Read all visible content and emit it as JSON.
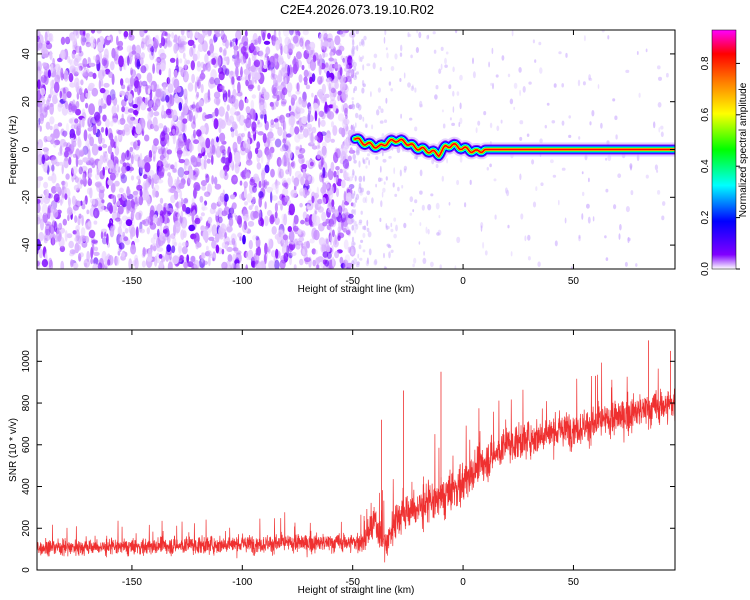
{
  "title": "C2E4.2026.073.19.10.R02",
  "chart_data": [
    {
      "type": "heatmap",
      "xlabel": "Height of straight line (km)",
      "ylabel": "Frequency (Hz)",
      "xlim": [
        -193,
        96
      ],
      "ylim": [
        -50,
        50
      ],
      "xticks": [
        -150,
        -100,
        -50,
        0,
        50
      ],
      "yticks": [
        -40,
        -20,
        0,
        20,
        40
      ],
      "colorbar": {
        "label": "Normalized spectral amplitude",
        "range": [
          0.0,
          0.93
        ],
        "ticks": [
          0.0,
          0.2,
          0.4,
          0.6,
          0.8
        ],
        "colormap": [
          "#ffffff",
          "#8000ff",
          "#0000ff",
          "#00ffff",
          "#00ff00",
          "#ffff00",
          "#ff8000",
          "#ff0000",
          "#ff00ff"
        ]
      },
      "features": {
        "noise_region_x": [
          -193,
          -50
        ],
        "noise_amplitude": [
          0.0,
          0.15
        ],
        "signal_track": [
          {
            "x": -49,
            "f": 5
          },
          {
            "x": -46,
            "f": 3
          },
          {
            "x": -42,
            "f": 2
          },
          {
            "x": -38,
            "f": 1
          },
          {
            "x": -34,
            "f": 3
          },
          {
            "x": -30,
            "f": 4
          },
          {
            "x": -26,
            "f": 3
          },
          {
            "x": -22,
            "f": 1
          },
          {
            "x": -18,
            "f": 0
          },
          {
            "x": -14,
            "f": -1
          },
          {
            "x": -11,
            "f": -2
          },
          {
            "x": -8,
            "f": 1
          },
          {
            "x": -5,
            "f": 2
          },
          {
            "x": -2,
            "f": 1
          },
          {
            "x": 2,
            "f": 0
          },
          {
            "x": 6,
            "f": -1
          },
          {
            "x": 10,
            "f": 0
          },
          {
            "x": 20,
            "f": 0
          },
          {
            "x": 50,
            "f": 0
          },
          {
            "x": 96,
            "f": 0
          }
        ],
        "signal_peak_amplitude": 0.85
      }
    },
    {
      "type": "line",
      "xlabel": "Height of straight line (km)",
      "ylabel": "SNR (10 * v/v)",
      "xlim": [
        -193,
        96
      ],
      "ylim": [
        0,
        1150
      ],
      "xticks": [
        -150,
        -100,
        -50,
        0,
        50
      ],
      "yticks": [
        0,
        200,
        400,
        600,
        800,
        1000
      ],
      "color": "#ef3030",
      "trend": [
        {
          "x": -193,
          "y": 110
        },
        {
          "x": -150,
          "y": 110
        },
        {
          "x": -100,
          "y": 125
        },
        {
          "x": -60,
          "y": 130
        },
        {
          "x": -45,
          "y": 135
        },
        {
          "x": -40,
          "y": 230
        },
        {
          "x": -35,
          "y": 120
        },
        {
          "x": -30,
          "y": 260
        },
        {
          "x": -20,
          "y": 300
        },
        {
          "x": -10,
          "y": 340
        },
        {
          "x": 0,
          "y": 420
        },
        {
          "x": 10,
          "y": 520
        },
        {
          "x": 20,
          "y": 600
        },
        {
          "x": 40,
          "y": 660
        },
        {
          "x": 60,
          "y": 700
        },
        {
          "x": 80,
          "y": 760
        },
        {
          "x": 96,
          "y": 800
        }
      ],
      "noise_spread": [
        {
          "x": -193,
          "s": 60
        },
        {
          "x": -50,
          "s": 70
        },
        {
          "x": -40,
          "s": 120
        },
        {
          "x": -20,
          "s": 160
        },
        {
          "x": 0,
          "s": 160
        },
        {
          "x": 20,
          "s": 130
        },
        {
          "x": 96,
          "s": 130
        }
      ],
      "notable_peaks": [
        {
          "x": -37,
          "y": 720
        },
        {
          "x": -27,
          "y": 860
        },
        {
          "x": -10,
          "y": 950
        },
        {
          "x": 60,
          "y": 930
        },
        {
          "x": 84,
          "y": 1100
        },
        {
          "x": 94,
          "y": 1050
        }
      ]
    }
  ]
}
